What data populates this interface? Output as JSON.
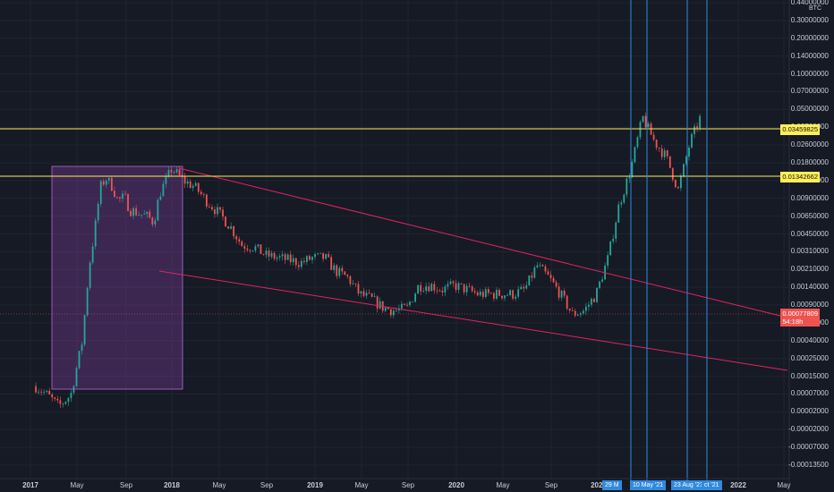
{
  "chart_data": {
    "type": "candlestick",
    "y_unit": "BTC",
    "y_scale": "log",
    "y_axis_ticks": [
      "0.44000000",
      "0.30000000",
      "0.20000000",
      "0.14000000",
      "0.10000000",
      "0.07000000",
      "0.05000000",
      "0.03700000",
      "0.02600000",
      "0.01800000",
      "0.01300000",
      "0.00900000",
      "0.00650000",
      "0.00450000",
      "0.00310000",
      "0.00210000",
      "0.00140000",
      "0.00090000",
      "0.00060000",
      "0.00040000",
      "0.00025000",
      "0.00015000",
      "0.00007000",
      "0.00002000",
      "-0.00002000",
      "-0.00007000",
      "-0.00013500"
    ],
    "x_axis_ticks": [
      {
        "label": "2017",
        "bold": true
      },
      {
        "label": "May",
        "bold": false
      },
      {
        "label": "Sep",
        "bold": false
      },
      {
        "label": "2018",
        "bold": true
      },
      {
        "label": "May",
        "bold": false
      },
      {
        "label": "Sep",
        "bold": false
      },
      {
        "label": "2019",
        "bold": true
      },
      {
        "label": "May",
        "bold": false
      },
      {
        "label": "Sep",
        "bold": false
      },
      {
        "label": "2020",
        "bold": true
      },
      {
        "label": "May",
        "bold": false
      },
      {
        "label": "Sep",
        "bold": false
      },
      {
        "label": "2021",
        "bold": true
      },
      {
        "label": "2022",
        "bold": true
      },
      {
        "label": "May",
        "bold": false
      }
    ],
    "horizontal_levels": [
      {
        "value": "0.03459825",
        "color": "#ffee58"
      },
      {
        "value": "0.01342662",
        "color": "#ffee58"
      }
    ],
    "last_price": {
      "value": "0.00077809",
      "countdown": "54:18h",
      "color": "#ef5350"
    },
    "date_markers": [
      {
        "label": "29 M",
        "color": "#2f8ae0"
      },
      {
        "label": "10 May '21",
        "color": "#2f8ae0"
      },
      {
        "label": "23 Aug '21",
        "color": "#2f8ae0"
      },
      {
        "label": "ct '21",
        "color": "#2f8ae0"
      }
    ],
    "series_close": [
      [
        "2017-01-15",
        0.00019
      ],
      [
        "2017-02-15",
        0.00016
      ],
      [
        "2017-03-15",
        0.00013
      ],
      [
        "2017-04-15",
        0.00016
      ],
      [
        "2017-05-15",
        0.00045
      ],
      [
        "2017-06-01",
        0.0018
      ],
      [
        "2017-06-15",
        0.0035
      ],
      [
        "2017-07-01",
        0.0085
      ],
      [
        "2017-07-15",
        0.01
      ],
      [
        "2017-08-01",
        0.0085
      ],
      [
        "2017-08-15",
        0.0065
      ],
      [
        "2017-09-01",
        0.007
      ],
      [
        "2017-09-15",
        0.0055
      ],
      [
        "2017-10-15",
        0.005
      ],
      [
        "2017-11-01",
        0.0048
      ],
      [
        "2017-11-15",
        0.0043
      ],
      [
        "2017-12-01",
        0.0075
      ],
      [
        "2018-01-01",
        0.012
      ],
      [
        "2018-02-01",
        0.0095
      ],
      [
        "2018-03-01",
        0.0085
      ],
      [
        "2018-04-01",
        0.0065
      ],
      [
        "2018-05-01",
        0.0052
      ],
      [
        "2018-06-01",
        0.004
      ],
      [
        "2018-07-01",
        0.0028
      ],
      [
        "2018-08-01",
        0.0027
      ],
      [
        "2018-09-01",
        0.0023
      ],
      [
        "2018-10-01",
        0.0022
      ],
      [
        "2018-11-01",
        0.0021
      ],
      [
        "2018-12-01",
        0.002
      ],
      [
        "2019-01-01",
        0.0022
      ],
      [
        "2019-02-01",
        0.0022
      ],
      [
        "2019-03-01",
        0.0017
      ],
      [
        "2019-04-01",
        0.0015
      ],
      [
        "2019-05-01",
        0.0011
      ],
      [
        "2019-06-01",
        0.001
      ],
      [
        "2019-07-01",
        0.00085
      ],
      [
        "2019-08-01",
        0.0008
      ],
      [
        "2019-09-01",
        0.00085
      ],
      [
        "2019-10-01",
        0.0013
      ],
      [
        "2019-11-01",
        0.0013
      ],
      [
        "2019-12-01",
        0.0012
      ],
      [
        "2020-01-01",
        0.0013
      ],
      [
        "2020-02-01",
        0.0012
      ],
      [
        "2020-03-01",
        0.0011
      ],
      [
        "2020-04-01",
        0.0011
      ],
      [
        "2020-05-01",
        0.0011
      ],
      [
        "2020-06-01",
        0.0011
      ],
      [
        "2020-07-01",
        0.0012
      ],
      [
        "2020-08-01",
        0.0019
      ],
      [
        "2020-09-01",
        0.0015
      ],
      [
        "2020-10-01",
        0.0011
      ],
      [
        "2020-11-01",
        0.00075
      ],
      [
        "2020-12-01",
        0.0008
      ],
      [
        "2021-01-01",
        0.0011
      ],
      [
        "2021-02-01",
        0.0022
      ],
      [
        "2021-03-01",
        0.006
      ],
      [
        "2021-04-01",
        0.012
      ],
      [
        "2021-05-01",
        0.032
      ],
      [
        "2021-06-01",
        0.02
      ],
      [
        "2021-07-01",
        0.015
      ],
      [
        "2021-08-01",
        0.008
      ],
      [
        "2021-09-01",
        0.02
      ],
      [
        "2021-10-01",
        0.034
      ]
    ]
  }
}
